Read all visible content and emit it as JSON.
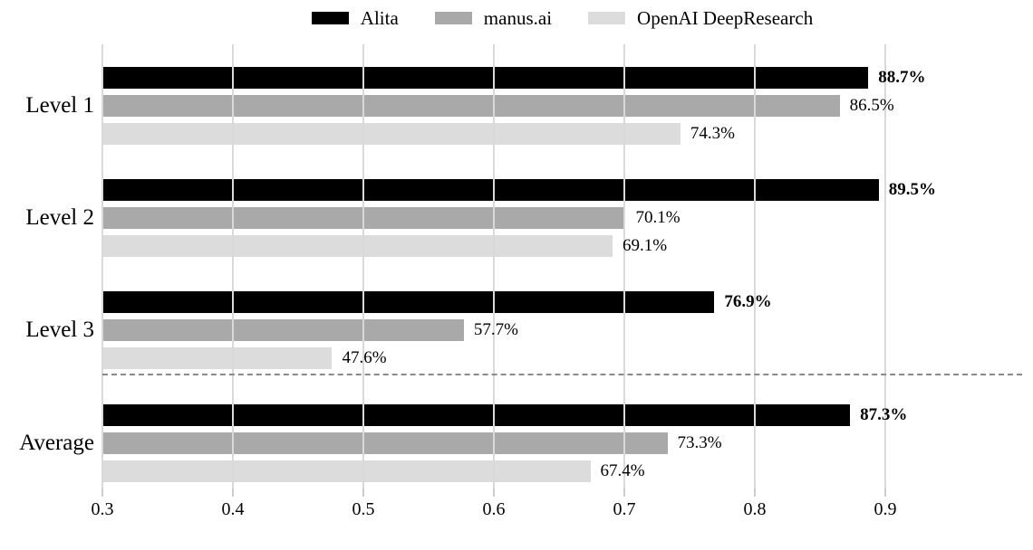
{
  "chart_data": {
    "type": "bar",
    "orientation": "horizontal",
    "title": "",
    "categories": [
      "Level 1",
      "Level 2",
      "Level 3",
      "Average"
    ],
    "series": [
      {
        "name": "Alita",
        "color": "#000000",
        "values_pct": [
          88.7,
          89.5,
          76.9,
          87.3
        ],
        "value_labels": [
          "88.7%",
          "89.5%",
          "76.9%",
          "87.3%"
        ],
        "label_bold": true
      },
      {
        "name": "manus.ai",
        "color": "#a9a9a9",
        "values_pct": [
          86.5,
          70.1,
          57.7,
          73.3
        ],
        "value_labels": [
          "86.5%",
          "70.1%",
          "57.7%",
          "73.3%"
        ],
        "label_bold": false
      },
      {
        "name": "OpenAI DeepResearch",
        "color": "#dcdcdc",
        "values_pct": [
          74.3,
          69.1,
          47.6,
          67.4
        ],
        "value_labels": [
          "74.3%",
          "69.1%",
          "47.6%",
          "67.4%"
        ],
        "label_bold": false
      }
    ],
    "x_axis": {
      "min": 0.3,
      "max": 1.0,
      "tick_values": [
        0.3,
        0.4,
        0.5,
        0.6,
        0.7,
        0.8,
        0.9
      ],
      "tick_labels": [
        "0.3",
        "0.4",
        "0.5",
        "0.6",
        "0.7",
        "0.8",
        "0.9"
      ],
      "gridlines": true,
      "gridline_color": "#d9d9d9",
      "grid_above_bars": true
    },
    "separator": {
      "after_category": "Level 3",
      "style": "dashed",
      "color": "#8a8a8a"
    },
    "legend_position": "top-center",
    "background": "#ffffff"
  }
}
